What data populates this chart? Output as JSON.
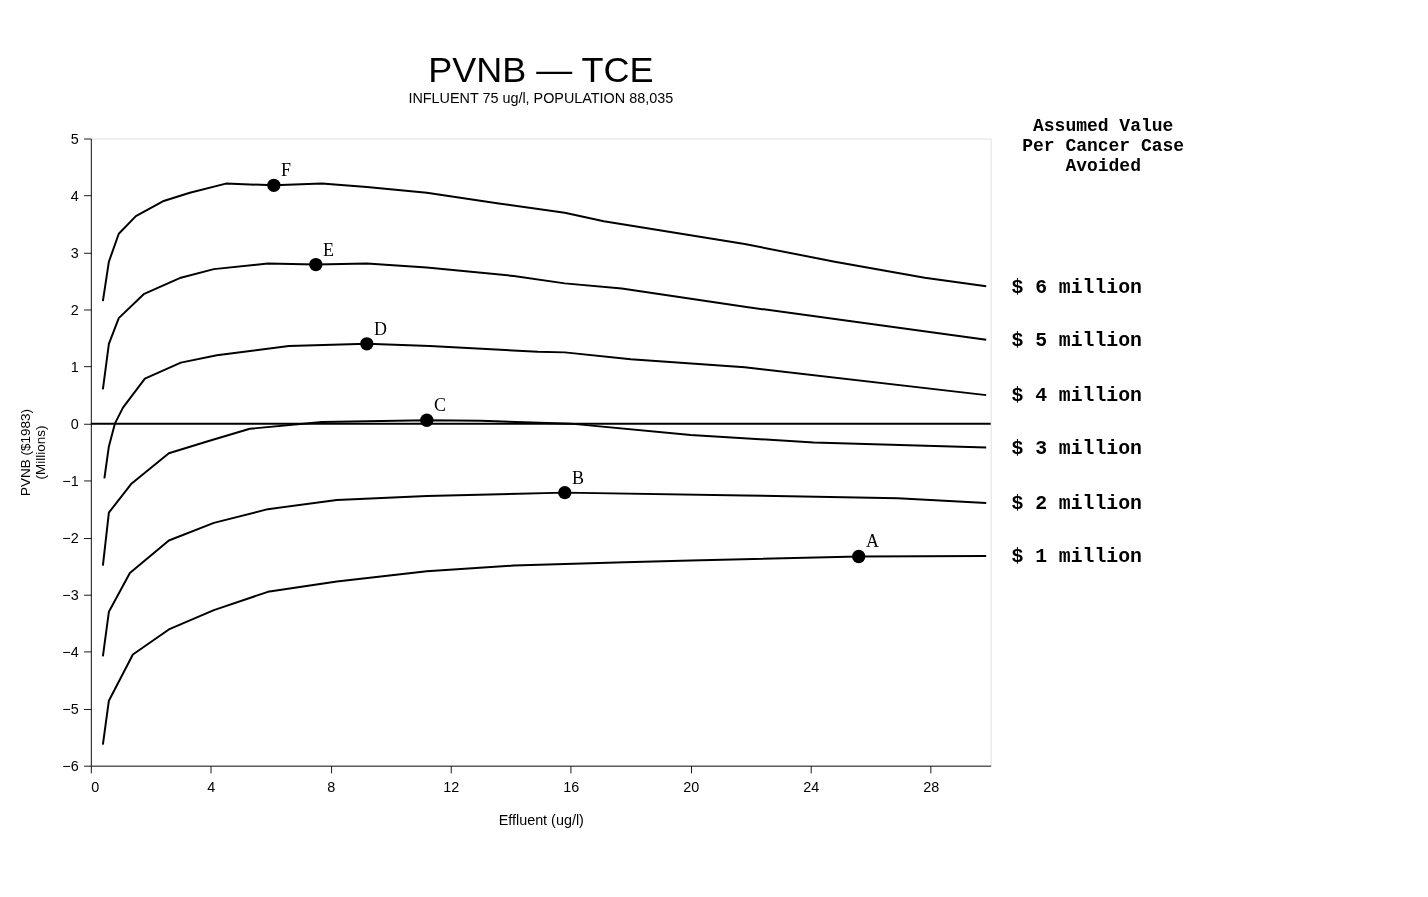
{
  "chart_data": {
    "type": "line",
    "title": "PVNB — TCE",
    "subtitle": "INFLUENT 75 ug/l, POPULATION 88,035",
    "xlabel": "Effluent (ug/l)",
    "ylabel": "PVNB ($1983)\n(Millions)",
    "legend_title": "Assumed Value\nPer Cancer Case\nAvoided",
    "xlim": [
      0,
      30
    ],
    "xticks": [
      0,
      4,
      8,
      12,
      16,
      20,
      24,
      28
    ],
    "ylim": [
      -6,
      5
    ],
    "yticks": [
      -6,
      -5,
      -4,
      -3,
      -2,
      -1,
      0,
      1,
      2,
      3,
      4,
      5
    ],
    "grid": false,
    "line_style": "solid",
    "marker": "none",
    "series": [
      {
        "name": "$ 6 million",
        "color": "#000000",
        "x": [
          0.4,
          0.6,
          0.93,
          1.5,
          2.4,
          3.3,
          4.5,
          6.1,
          7.7,
          9.2,
          11.2,
          13.6,
          15.8,
          17.1,
          21.8,
          24.8,
          27.8,
          29.85
        ],
        "values": [
          2.15,
          2.84,
          3.33,
          3.64,
          3.9,
          4.05,
          4.21,
          4.18,
          4.21,
          4.15,
          4.05,
          3.86,
          3.7,
          3.55,
          3.15,
          2.84,
          2.56,
          2.41
        ]
      },
      {
        "name": "$ 5 million",
        "color": "#000000",
        "x": [
          0.4,
          0.6,
          0.93,
          1.76,
          3.0,
          4.1,
          5.9,
          7.5,
          9.2,
          11.2,
          14.1,
          15.8,
          17.7,
          21.8,
          29.85
        ],
        "values": [
          0.6,
          1.4,
          1.85,
          2.27,
          2.56,
          2.71,
          2.81,
          2.79,
          2.81,
          2.74,
          2.59,
          2.46,
          2.37,
          2.05,
          1.47
        ]
      },
      {
        "name": "$ 4 million",
        "color": "#000000",
        "x": [
          0.45,
          0.6,
          0.8,
          1.07,
          1.8,
          3.0,
          4.2,
          6.6,
          9.2,
          11.3,
          14.9,
          15.8,
          18.0,
          21.8,
          29.85
        ],
        "values": [
          -0.96,
          -0.4,
          0.0,
          0.28,
          0.79,
          1.07,
          1.2,
          1.36,
          1.4,
          1.36,
          1.26,
          1.25,
          1.13,
          0.99,
          0.5
        ]
      },
      {
        "name": "$ 3 million",
        "color": "#000000",
        "x": [
          0.4,
          0.6,
          1.34,
          2.6,
          3.9,
          5.3,
          7.7,
          11.2,
          13.0,
          16.0,
          20.0,
          24.1,
          29.85
        ],
        "values": [
          -2.49,
          -1.56,
          -1.06,
          -0.52,
          -0.31,
          -0.09,
          0.03,
          0.06,
          0.05,
          0.0,
          -0.2,
          -0.33,
          -0.42
        ]
      },
      {
        "name": "$ 2 million",
        "color": "#000000",
        "x": [
          0.4,
          0.6,
          1.3,
          2.6,
          4.1,
          5.9,
          8.2,
          11.2,
          15.8,
          21.8,
          26.9,
          29.85
        ],
        "values": [
          -4.08,
          -3.3,
          -2.62,
          -2.05,
          -1.74,
          -1.5,
          -1.34,
          -1.27,
          -1.21,
          -1.26,
          -1.31,
          -1.39
        ]
      },
      {
        "name": "$ 1 million",
        "color": "#000000",
        "x": [
          0.4,
          0.6,
          1.4,
          2.6,
          4.1,
          5.9,
          8.2,
          11.2,
          14.1,
          17.8,
          20.0,
          25.6,
          29.85
        ],
        "values": [
          -5.63,
          -4.86,
          -4.05,
          -3.61,
          -3.27,
          -2.95,
          -2.77,
          -2.59,
          -2.49,
          -2.43,
          -2.4,
          -2.33,
          -2.32
        ]
      },
      {
        "type": "scatter",
        "marker": "circle",
        "color": "#000000",
        "x": [
          25.6,
          15.8,
          11.2,
          9.2,
          7.5,
          6.1
        ],
        "values": [
          -2.33,
          -1.21,
          0.06,
          1.4,
          2.79,
          4.18
        ]
      }
    ],
    "ref_lines": [
      {
        "axis": "y",
        "value": 0,
        "color": "#000000"
      }
    ],
    "annotations": [
      {
        "text": "A",
        "x": 25.6,
        "y": -2.33
      },
      {
        "text": "B",
        "x": 15.8,
        "y": -1.21
      },
      {
        "text": "C",
        "x": 11.2,
        "y": 0.06
      },
      {
        "text": "D",
        "x": 9.2,
        "y": 1.4
      },
      {
        "text": "E",
        "x": 7.5,
        "y": 2.79
      },
      {
        "text": "F",
        "x": 6.1,
        "y": 4.18
      }
    ]
  }
}
